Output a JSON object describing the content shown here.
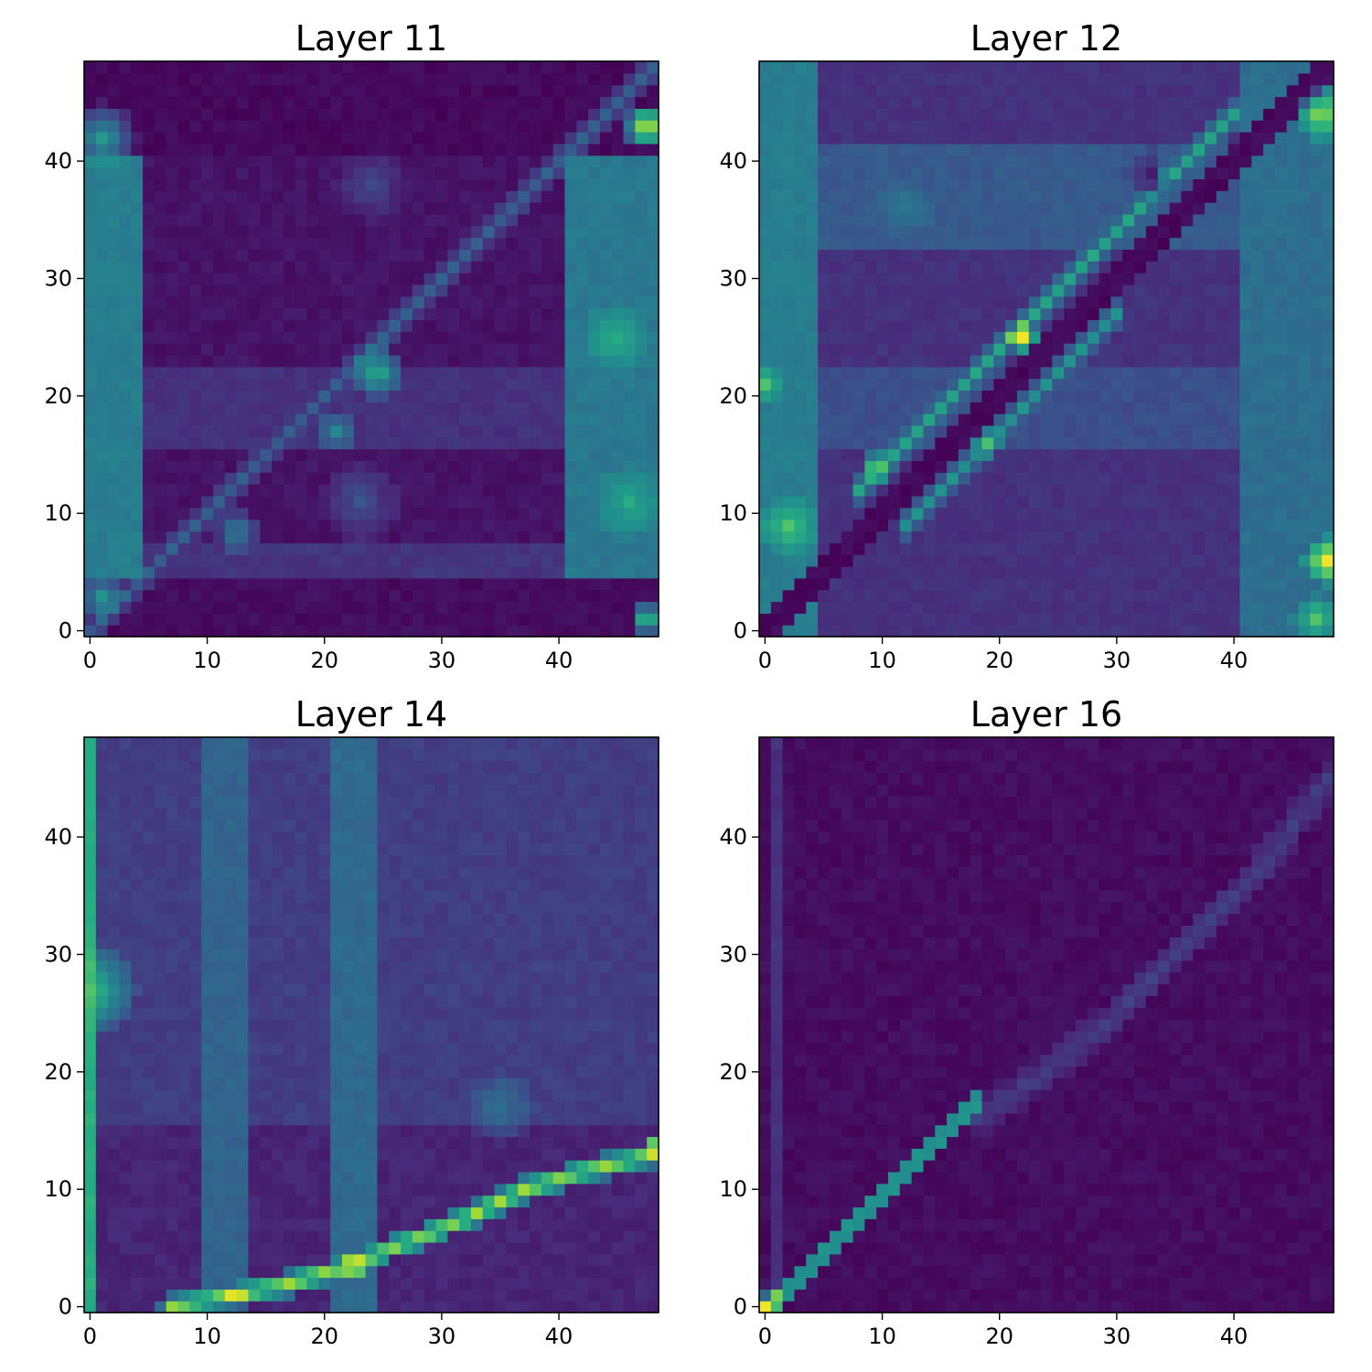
{
  "figure": {
    "colormap": "viridis",
    "colormap_stops": [
      "#440154",
      "#472c7a",
      "#3b518b",
      "#2c718e",
      "#21908d",
      "#27ad81",
      "#5cc863",
      "#aadc32",
      "#fde725"
    ]
  },
  "chart_data": [
    {
      "type": "heatmap",
      "title": "Layer 11",
      "grid_size": 49,
      "xlim": [
        -0.5,
        48.5
      ],
      "ylim": [
        -0.5,
        48.5
      ],
      "xticks": [
        0,
        10,
        20,
        30,
        40
      ],
      "yticks": [
        0,
        10,
        20,
        30,
        40
      ],
      "value_range": [
        0,
        1
      ],
      "background": 0.05,
      "features": [
        {
          "kind": "band",
          "axis": "x",
          "from": 0,
          "to": 4,
          "value": 0.42
        },
        {
          "kind": "band",
          "axis": "x",
          "from": 41,
          "to": 48,
          "value": 0.4
        },
        {
          "kind": "band",
          "axis": "y",
          "from": 41,
          "to": 48,
          "value": 0.02
        },
        {
          "kind": "band",
          "axis": "y",
          "from": 0,
          "to": 4,
          "value": 0.03
        },
        {
          "kind": "band",
          "axis": "y",
          "from": 5,
          "to": 7,
          "value": 0.15
        },
        {
          "kind": "band",
          "axis": "y",
          "from": 16,
          "to": 22,
          "value": 0.14
        },
        {
          "kind": "diag",
          "value": 0.3,
          "width": 1.0
        },
        {
          "kind": "blob",
          "x": 24.5,
          "y": 22,
          "r": 2.2,
          "value": 0.62
        },
        {
          "kind": "blob",
          "x": 12.5,
          "y": 8.5,
          "r": 1.6,
          "value": 0.5
        },
        {
          "kind": "blob",
          "x": 21,
          "y": 17,
          "r": 1.8,
          "value": 0.45
        },
        {
          "kind": "blob",
          "x": 47.5,
          "y": 43,
          "r": 2.0,
          "value": 1.0
        },
        {
          "kind": "blob",
          "x": 45,
          "y": 25,
          "r": 3.0,
          "value": 0.62
        },
        {
          "kind": "blob",
          "x": 46,
          "y": 11,
          "r": 3.0,
          "value": 0.6
        },
        {
          "kind": "blob",
          "x": 1,
          "y": 42,
          "r": 3.0,
          "value": 0.55
        },
        {
          "kind": "blob",
          "x": 1,
          "y": 3,
          "r": 2.2,
          "value": 0.52
        },
        {
          "kind": "blob",
          "x": 47.5,
          "y": 1,
          "r": 1.3,
          "value": 0.75
        },
        {
          "kind": "blob",
          "x": 24,
          "y": 38,
          "r": 3.0,
          "value": 0.22
        },
        {
          "kind": "blob",
          "x": 23,
          "y": 11,
          "r": 3.5,
          "value": 0.25
        }
      ]
    },
    {
      "type": "heatmap",
      "title": "Layer 12",
      "grid_size": 49,
      "xlim": [
        -0.5,
        48.5
      ],
      "ylim": [
        -0.5,
        48.5
      ],
      "xticks": [
        0,
        10,
        20,
        30,
        40
      ],
      "yticks": [
        0,
        10,
        20,
        30,
        40
      ],
      "value_range": [
        0,
        1
      ],
      "background": 0.14,
      "features": [
        {
          "kind": "band",
          "axis": "x",
          "from": 0,
          "to": 4,
          "value": 0.42
        },
        {
          "kind": "band",
          "axis": "x",
          "from": 41,
          "to": 48,
          "value": 0.36
        },
        {
          "kind": "band",
          "axis": "y",
          "from": 33,
          "to": 41,
          "value": 0.28
        },
        {
          "kind": "band",
          "axis": "y",
          "from": 16,
          "to": 22,
          "value": 0.24
        },
        {
          "kind": "diag",
          "value": 0.0,
          "width": 0.8
        },
        {
          "kind": "offdiag",
          "offset": 4,
          "from": 8,
          "to": 40,
          "value": 0.58,
          "width": 0.8
        },
        {
          "kind": "offdiag",
          "offset": -3,
          "from": 12,
          "to": 30,
          "value": 0.5,
          "width": 0.8
        },
        {
          "kind": "blob",
          "x": 22,
          "y": 25,
          "r": 1.3,
          "value": 1.0
        },
        {
          "kind": "blob",
          "x": 34,
          "y": 39,
          "r": 1.0,
          "value": 0.95
        },
        {
          "kind": "blob",
          "x": 9.5,
          "y": 14,
          "r": 1.3,
          "value": 0.75
        },
        {
          "kind": "blob",
          "x": 19,
          "y": 16,
          "r": 1.1,
          "value": 0.7
        },
        {
          "kind": "blob",
          "x": 48,
          "y": 6,
          "r": 2.0,
          "value": 1.0
        },
        {
          "kind": "blob",
          "x": 47.5,
          "y": 44,
          "r": 2.2,
          "value": 0.85
        },
        {
          "kind": "blob",
          "x": 47,
          "y": 1,
          "r": 2.0,
          "value": 0.7
        },
        {
          "kind": "blob",
          "x": 0,
          "y": 21,
          "r": 1.5,
          "value": 0.7
        },
        {
          "kind": "blob",
          "x": 2,
          "y": 9,
          "r": 2.5,
          "value": 0.72
        },
        {
          "kind": "blob",
          "x": 12,
          "y": 36,
          "r": 2.5,
          "value": 0.4
        },
        {
          "kind": "blob",
          "x": 33,
          "y": 39,
          "r": 2.0,
          "value": 0.05
        }
      ]
    },
    {
      "type": "heatmap",
      "title": "Layer 14",
      "grid_size": 49,
      "xlim": [
        -0.5,
        48.5
      ],
      "ylim": [
        -0.5,
        48.5
      ],
      "xticks": [
        0,
        10,
        20,
        30,
        40
      ],
      "yticks": [
        0,
        10,
        20,
        30,
        40
      ],
      "value_range": [
        0,
        1
      ],
      "background": 0.1,
      "features": [
        {
          "kind": "band",
          "axis": "y",
          "from": 16,
          "to": 48,
          "value": 0.18
        },
        {
          "kind": "band",
          "axis": "x",
          "from": 0,
          "to": 0,
          "value": 0.62
        },
        {
          "kind": "band",
          "axis": "x",
          "from": 10,
          "to": 13,
          "value": 0.32
        },
        {
          "kind": "band",
          "axis": "x",
          "from": 21,
          "to": 24,
          "value": 0.34
        },
        {
          "kind": "curve",
          "points": [
            [
              7,
              0
            ],
            [
              12,
              1
            ],
            [
              17,
              2
            ],
            [
              22,
              3.5
            ],
            [
              27,
              5.5
            ],
            [
              32,
              7.5
            ],
            [
              37,
              10
            ],
            [
              42,
              11.5
            ],
            [
              48,
              13
            ]
          ],
          "value": 0.85,
          "width": 1.0
        },
        {
          "kind": "blob",
          "x": 12.5,
          "y": 1,
          "r": 1.0,
          "value": 1.0
        },
        {
          "kind": "blob",
          "x": 22.5,
          "y": 3.5,
          "r": 1.0,
          "value": 1.0
        },
        {
          "kind": "blob",
          "x": 48,
          "y": 13.5,
          "r": 1.0,
          "value": 0.95
        },
        {
          "kind": "blob",
          "x": 0,
          "y": 27,
          "r": 4.0,
          "value": 0.7
        },
        {
          "kind": "blob",
          "x": 35,
          "y": 17,
          "r": 3.0,
          "value": 0.38
        }
      ]
    },
    {
      "type": "heatmap",
      "title": "Layer 16",
      "grid_size": 49,
      "xlim": [
        -0.5,
        48.5
      ],
      "ylim": [
        -0.5,
        48.5
      ],
      "xticks": [
        0,
        10,
        20,
        30,
        40
      ],
      "yticks": [
        0,
        10,
        20,
        30,
        40
      ],
      "value_range": [
        0,
        1
      ],
      "background": 0.03,
      "features": [
        {
          "kind": "diag",
          "value": 0.5,
          "width": 0.7,
          "from": 0,
          "to": 18
        },
        {
          "kind": "diag",
          "value": 0.5,
          "width": 0.7,
          "from": 0,
          "to": 18,
          "shift": -1
        },
        {
          "kind": "curve",
          "points": [
            [
              18,
              16
            ],
            [
              24,
              20
            ],
            [
              30,
              25
            ],
            [
              36,
              31
            ],
            [
              42,
              37
            ],
            [
              48,
              45
            ]
          ],
          "value": 0.18,
          "width": 1.4
        },
        {
          "kind": "band",
          "axis": "x",
          "from": 1,
          "to": 1,
          "value": 0.14
        },
        {
          "kind": "blob",
          "x": 0,
          "y": 0,
          "r": 1.0,
          "value": 1.0
        },
        {
          "kind": "blob",
          "x": 1,
          "y": 1,
          "r": 0.8,
          "value": 0.8
        }
      ]
    }
  ]
}
